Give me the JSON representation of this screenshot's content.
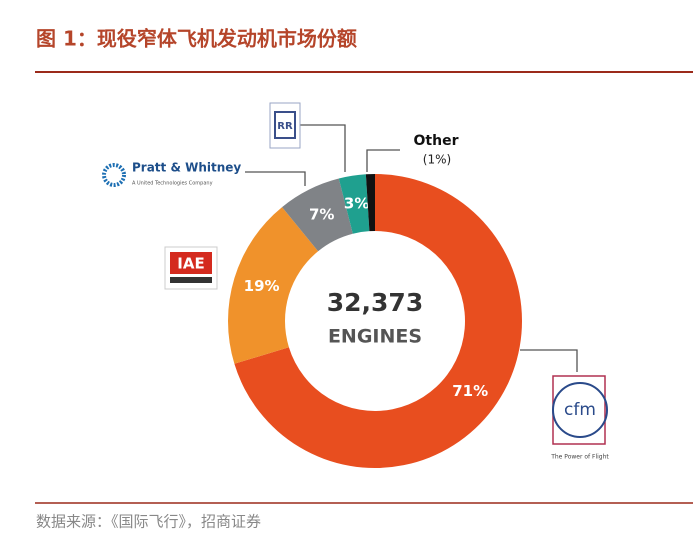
{
  "chart_data": {
    "type": "pie",
    "title": "图 1：现役窄体飞机发动机市场份额",
    "center_title": "32,373",
    "center_subtitle": "ENGINES",
    "categories": [
      "cfm",
      "IAE",
      "Pratt & Whitney",
      "RR",
      "Other"
    ],
    "values": [
      71,
      19,
      7,
      3,
      1
    ],
    "value_labels": [
      "71%",
      "19%",
      "7%",
      "3%",
      "(1%)"
    ],
    "colors": [
      "#e84e1f",
      "#f0922b",
      "#808387",
      "#1fa08f",
      "#111111"
    ],
    "logo_taglines": [
      "The Power of Flight",
      "A United Technologies Company"
    ],
    "source": "数据来源：《国际飞行》，招商证券"
  }
}
